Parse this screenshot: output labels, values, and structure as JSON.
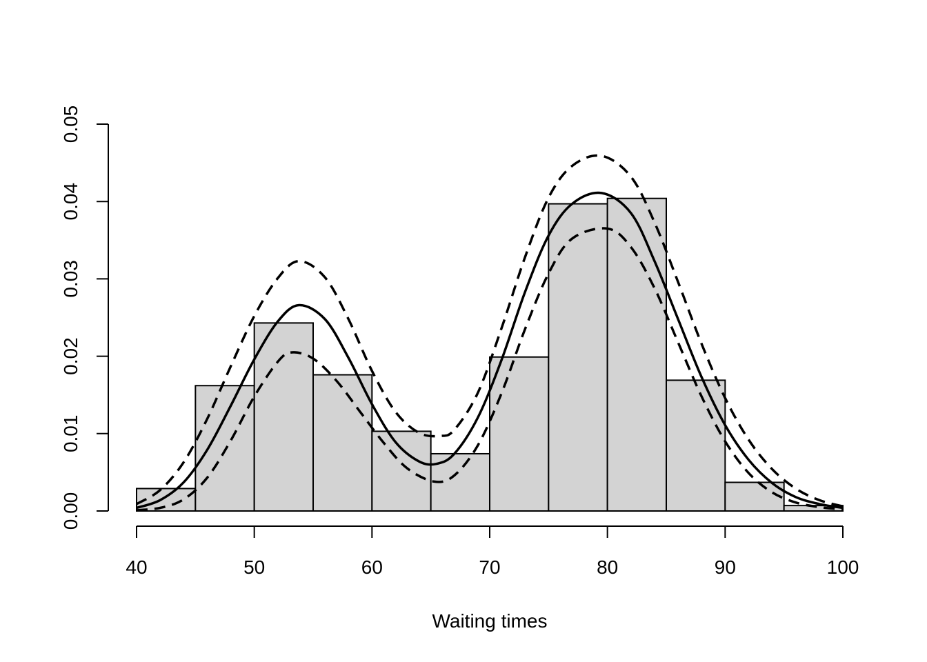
{
  "chart_data": {
    "type": "bar",
    "title": "",
    "xlabel": "Waiting times",
    "ylabel": "",
    "xlim": [
      40,
      100
    ],
    "ylim": [
      0,
      0.05
    ],
    "x_ticks": [
      "40",
      "50",
      "60",
      "70",
      "80",
      "90",
      "100"
    ],
    "y_ticks": [
      "0.00",
      "0.01",
      "0.02",
      "0.03",
      "0.04",
      "0.05"
    ],
    "histogram": {
      "bin_edges": [
        40,
        45,
        50,
        55,
        60,
        65,
        70,
        75,
        80,
        85,
        90,
        95,
        100
      ],
      "density": [
        0.0029,
        0.0162,
        0.0243,
        0.0176,
        0.0103,
        0.0074,
        0.0199,
        0.0397,
        0.0404,
        0.0169,
        0.0037,
        0.0007
      ],
      "fill": "#d3d3d3"
    },
    "curves": [
      {
        "style": "solid",
        "x": [
          40,
          42,
          44,
          46,
          48,
          50,
          52,
          53.8,
          56,
          58,
          60,
          62,
          64,
          65.5,
          67,
          69,
          71,
          73,
          75,
          77,
          79.5,
          82,
          84,
          86,
          88,
          90,
          92,
          94,
          96,
          98,
          100
        ],
        "y": [
          0.0004,
          0.0014,
          0.0037,
          0.0079,
          0.0136,
          0.0196,
          0.0245,
          0.0266,
          0.0248,
          0.0198,
          0.0138,
          0.0089,
          0.0064,
          0.0061,
          0.0074,
          0.0121,
          0.0195,
          0.0283,
          0.0356,
          0.0397,
          0.0411,
          0.0385,
          0.0323,
          0.0248,
          0.0173,
          0.0111,
          0.0066,
          0.0036,
          0.0018,
          0.0009,
          0.0004
        ]
      },
      {
        "style": "dashed",
        "x": [
          40,
          42,
          44,
          46,
          48,
          50,
          52,
          53.8,
          56,
          58,
          60,
          62,
          64,
          65.8,
          67,
          69,
          71,
          73,
          75,
          77,
          79.5,
          82,
          84,
          86,
          88,
          90,
          92,
          94,
          96,
          98,
          100
        ],
        "y": [
          0.0009,
          0.0027,
          0.0063,
          0.0119,
          0.0187,
          0.0252,
          0.0301,
          0.0323,
          0.0302,
          0.0248,
          0.0181,
          0.0128,
          0.0101,
          0.0097,
          0.0105,
          0.0153,
          0.0236,
          0.0328,
          0.0405,
          0.0446,
          0.0459,
          0.0432,
          0.0373,
          0.0296,
          0.0216,
          0.0146,
          0.0092,
          0.0054,
          0.0029,
          0.0014,
          0.0006
        ]
      },
      {
        "style": "dashed",
        "x": [
          40,
          42,
          44,
          46,
          48,
          50,
          52,
          53.2,
          55,
          57,
          59,
          61,
          63,
          65.3,
          67,
          69,
          71,
          73,
          75,
          77,
          80,
          82,
          84,
          86,
          88,
          90,
          92,
          94,
          96,
          98,
          100
        ],
        "y": [
          0.0001,
          0.0004,
          0.0015,
          0.0043,
          0.0091,
          0.0148,
          0.0193,
          0.0205,
          0.0197,
          0.0168,
          0.0128,
          0.0088,
          0.0055,
          0.0038,
          0.0046,
          0.0085,
          0.0152,
          0.0235,
          0.0307,
          0.0352,
          0.0365,
          0.0341,
          0.0288,
          0.0218,
          0.0148,
          0.009,
          0.0049,
          0.0024,
          0.0011,
          0.0005,
          0.0002
        ]
      }
    ]
  }
}
